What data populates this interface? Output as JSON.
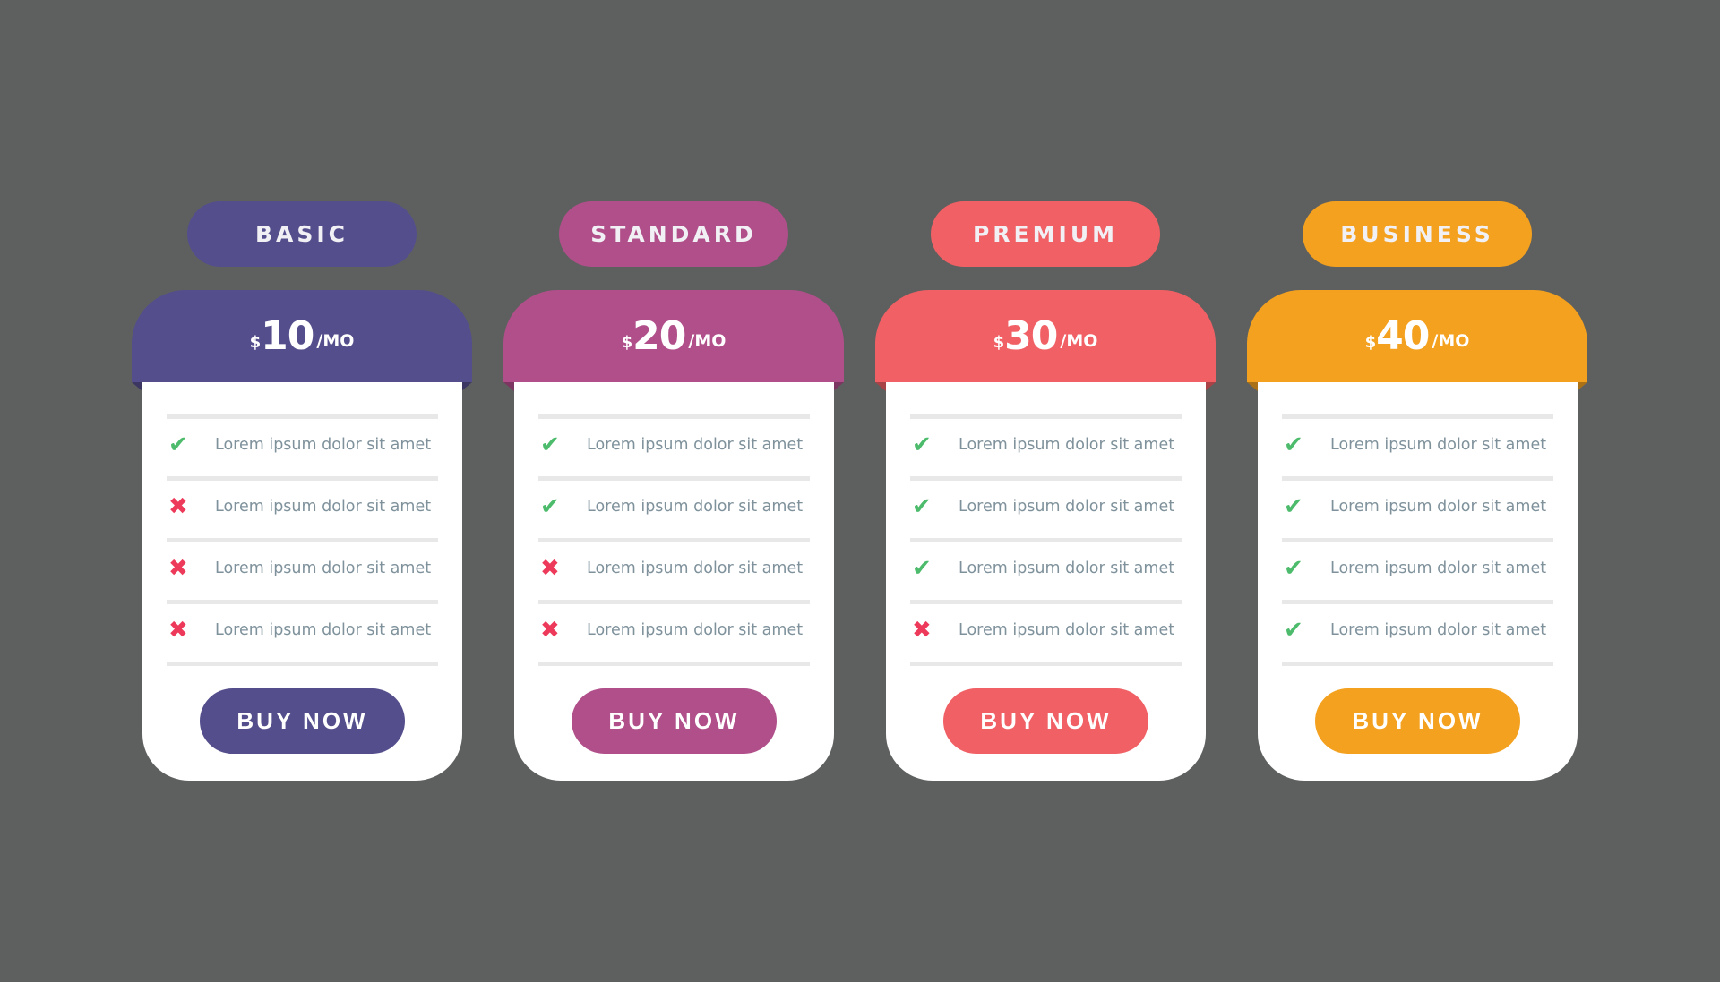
{
  "plans": [
    {
      "name": "BASIC",
      "currency": "$",
      "price": "10",
      "period": "/MO",
      "color": "#544f8c",
      "features": [
        {
          "text": "Lorem ipsum dolor sit amet",
          "included": true
        },
        {
          "text": "Lorem ipsum dolor sit amet",
          "included": false
        },
        {
          "text": "Lorem ipsum dolor sit amet",
          "included": false
        },
        {
          "text": "Lorem ipsum dolor sit amet",
          "included": false
        }
      ],
      "button": "BUY NOW"
    },
    {
      "name": "STANDARD",
      "currency": "$",
      "price": "20",
      "period": "/MO",
      "color": "#b04f8a",
      "features": [
        {
          "text": "Lorem ipsum dolor sit amet",
          "included": true
        },
        {
          "text": "Lorem ipsum dolor sit amet",
          "included": true
        },
        {
          "text": "Lorem ipsum dolor sit amet",
          "included": false
        },
        {
          "text": "Lorem ipsum dolor sit amet",
          "included": false
        }
      ],
      "button": "BUY NOW"
    },
    {
      "name": "PREMIUM",
      "currency": "$",
      "price": "30",
      "period": "/MO",
      "color": "#f06065",
      "features": [
        {
          "text": "Lorem ipsum dolor sit amet",
          "included": true
        },
        {
          "text": "Lorem ipsum dolor sit amet",
          "included": true
        },
        {
          "text": "Lorem ipsum dolor sit amet",
          "included": true
        },
        {
          "text": "Lorem ipsum dolor sit amet",
          "included": false
        }
      ],
      "button": "BUY NOW"
    },
    {
      "name": "BUSINESS",
      "currency": "$",
      "price": "40",
      "period": "/MO",
      "color": "#f3a11f",
      "features": [
        {
          "text": "Lorem ipsum dolor sit amet",
          "included": true
        },
        {
          "text": "Lorem ipsum dolor sit amet",
          "included": true
        },
        {
          "text": "Lorem ipsum dolor sit amet",
          "included": true
        },
        {
          "text": "Lorem ipsum dolor sit amet",
          "included": true
        }
      ],
      "button": "BUY NOW"
    }
  ],
  "icons": {
    "included": "check-icon",
    "excluded": "x-icon"
  }
}
